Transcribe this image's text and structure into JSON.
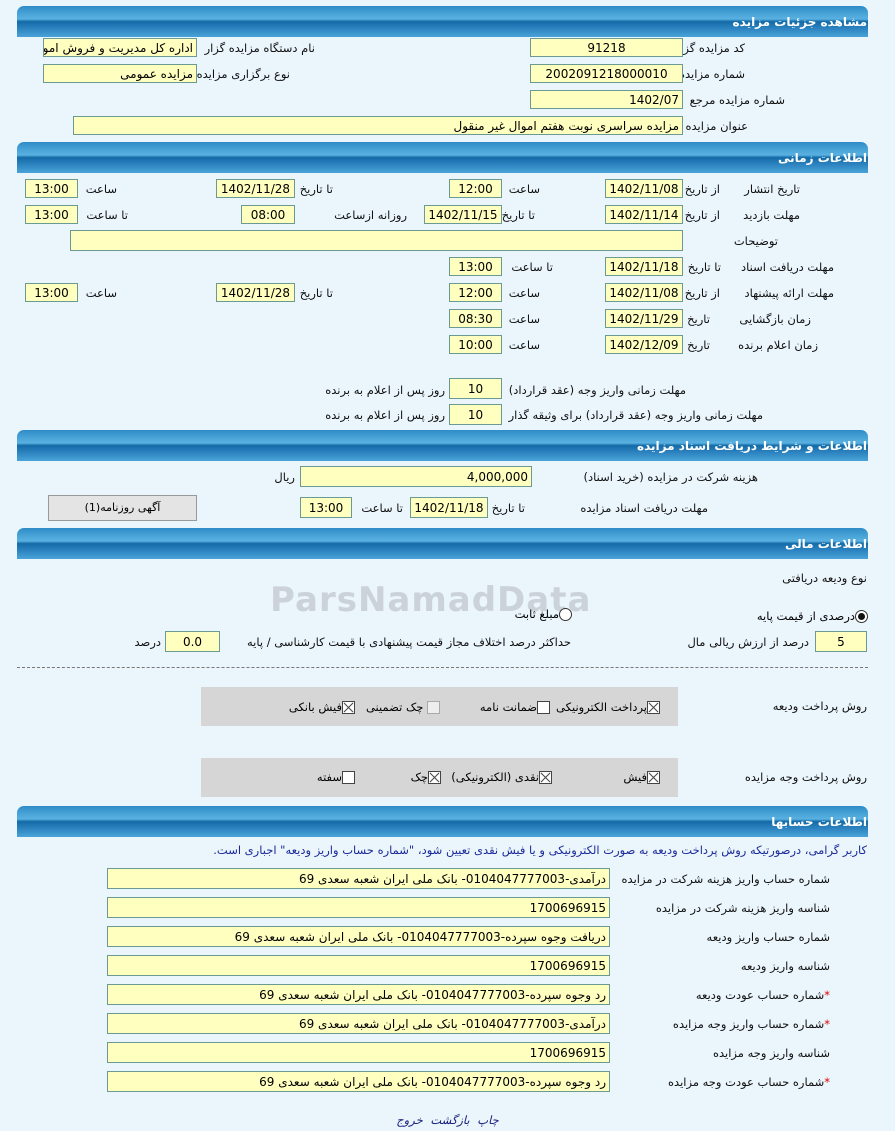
{
  "sections": {
    "details": "مشاهده جزئیات مزایده",
    "timing": "اطلاعات زمانی",
    "documents": "اطلاعات و شرایط دریافت اسناد مزایده",
    "financial": "اطلاعات مالی",
    "accounts": "اطلاعات حسابها"
  },
  "details": {
    "auctioneer_code_label": "کد مزایده گزار",
    "auctioneer_code": "91218",
    "auctioneer_name_label": "نام دستگاه مزایده گزار",
    "auctioneer_name": "اداره کل مدیریت و فروش اموال",
    "auction_number_label": "شماره مزایده",
    "auction_number": "2002091218000010",
    "auction_type_label": "نوع برگزاری مزایده",
    "auction_type": "مزایده عمومی",
    "reference_number_label": "شماره مزایده مرجع",
    "reference_number": "1402/07",
    "title_label": "عنوان مزایده",
    "title": "مزایده سراسری نوبت هفتم اموال غیر منقول"
  },
  "timing": {
    "labels": {
      "from_date": "از تاریخ",
      "to_date": "تا تاریخ",
      "time": "ساعت",
      "to_time": "تا ساعت",
      "date": "تاریخ",
      "daily_from": "روزانه ازساعت"
    },
    "publish": {
      "label": "تاریخ انتشار",
      "from_date": "1402/11/08",
      "from_time": "12:00",
      "to_date": "1402/11/28",
      "to_time": "13:00"
    },
    "visit": {
      "label": "مهلت بازدید",
      "from_date": "1402/11/14",
      "to_date": "1402/11/15",
      "daily_from": "08:00",
      "to_time": "13:00"
    },
    "description": {
      "label": "توضیحات",
      "value": ""
    },
    "doc_deadline": {
      "label": "مهلت دریافت اسناد",
      "to_date": "1402/11/18",
      "to_time": "13:00"
    },
    "offer": {
      "label": "مهلت ارائه پیشنهاد",
      "from_date": "1402/11/08",
      "from_time": "12:00",
      "to_date": "1402/11/28",
      "to_time": "13:00"
    },
    "opening": {
      "label": "زمان بازگشایی",
      "date": "1402/11/29",
      "time": "08:30"
    },
    "winner": {
      "label": "زمان اعلام برنده",
      "date": "1402/12/09",
      "time": "10:00"
    },
    "payment_deadline": {
      "label": "مهلت زمانی واریز وجه (عقد قرارداد)",
      "value": "10",
      "suffix": "روز پس از اعلام به برنده"
    },
    "collateral_deadline": {
      "label": "مهلت زمانی واریز وجه (عقد قرارداد) برای وثیقه گذار",
      "value": "10",
      "suffix": "روز پس از اعلام به برنده"
    }
  },
  "documents": {
    "fee_label": "هزینه شرکت در مزایده (خرید اسناد)",
    "fee": "4,000,000",
    "currency": "ریال",
    "deadline_label": "مهلت دریافت اسناد مزایده",
    "to_date_label": "تا تاریخ",
    "to_date": "1402/11/18",
    "to_time_label": "تا ساعت",
    "to_time": "13:00",
    "newspaper_button": "آگهی روزنامه(1)"
  },
  "financial": {
    "deposit_type_label": "نوع ودیعه دریافتی",
    "radio_percent": "درصدی از قیمت پایه",
    "radio_percent_checked": true,
    "radio_fixed": "مبلغ ثابت",
    "radio_fixed_checked": false,
    "percent_value": "5",
    "percent_suffix": "درصد از ارزش ریالی مال",
    "max_diff_label": "حداکثر درصد اختلاف مجاز قیمت پیشنهادی با قیمت کارشناسی / پایه",
    "max_diff_value": "0.0",
    "max_diff_suffix": "درصد",
    "deposit_method_label": "روش پرداخت ودیعه",
    "deposit_methods": [
      {
        "label": "پرداخت الکترونیکی",
        "checked": true
      },
      {
        "label": "ضمانت نامه",
        "checked": false
      },
      {
        "label": "چک تضمینی",
        "checked": false,
        "disabled": true
      },
      {
        "label": "فیش بانکی",
        "checked": true
      }
    ],
    "payment_method_label": "روش پرداخت وجه مزایده",
    "payment_methods": [
      {
        "label": "فیش",
        "checked": true
      },
      {
        "label": "نقدی (الکترونیکی)",
        "checked": true
      },
      {
        "label": "چک",
        "checked": true
      },
      {
        "label": "سفته",
        "checked": false
      }
    ]
  },
  "accounts": {
    "notice": "کاربر گرامی، درصورتیکه روش پرداخت ودیعه به صورت الکترونیکی و یا فیش نقدی تعیین شود، \"شماره حساب واریز ودیعه\" اجباری است.",
    "rows": [
      {
        "label": "شماره حساب واریز هزینه شرکت در مزایده",
        "value": "درآمدی-0104047777003- بانک ملی ایران شعبه سعدی 69",
        "required": false
      },
      {
        "label": "شناسه واریز هزینه شرکت در مزایده",
        "value": "1700696915",
        "required": false
      },
      {
        "label": "شماره حساب واریز ودیعه",
        "value": "دریافت وجوه سپرده-0104047777003- بانک ملی ایران شعبه سعدی 69",
        "required": false
      },
      {
        "label": "شناسه واریز ودیعه",
        "value": "1700696915",
        "required": false
      },
      {
        "label": "شماره حساب عودت ودیعه",
        "value": "رد وجوه سپرده-0104047777003- بانک ملی ایران شعبه سعدی 69",
        "required": true
      },
      {
        "label": "شماره حساب واریز وجه مزایده",
        "value": "درآمدی-0104047777003- بانک ملی ایران شعبه سعدی 69",
        "required": true
      },
      {
        "label": "شناسه واریز وجه مزایده",
        "value": "1700696915",
        "required": false
      },
      {
        "label": "شماره حساب عودت وجه مزایده",
        "value": "رد وجوه سپرده-0104047777003- بانک ملی ایران شعبه سعدی 69",
        "required": true
      }
    ],
    "required_mark": "*"
  },
  "footer": {
    "print": "چاپ",
    "back": "بازگشت",
    "exit": "خروج"
  },
  "watermark": "ParsNamadData",
  "colors": {
    "field_bg": "#ffffc0",
    "header_blue": "#2f8cc6",
    "page_bg": "#eaf5fc",
    "notice_text": "#1b2a9a",
    "required": "#dd0000"
  }
}
